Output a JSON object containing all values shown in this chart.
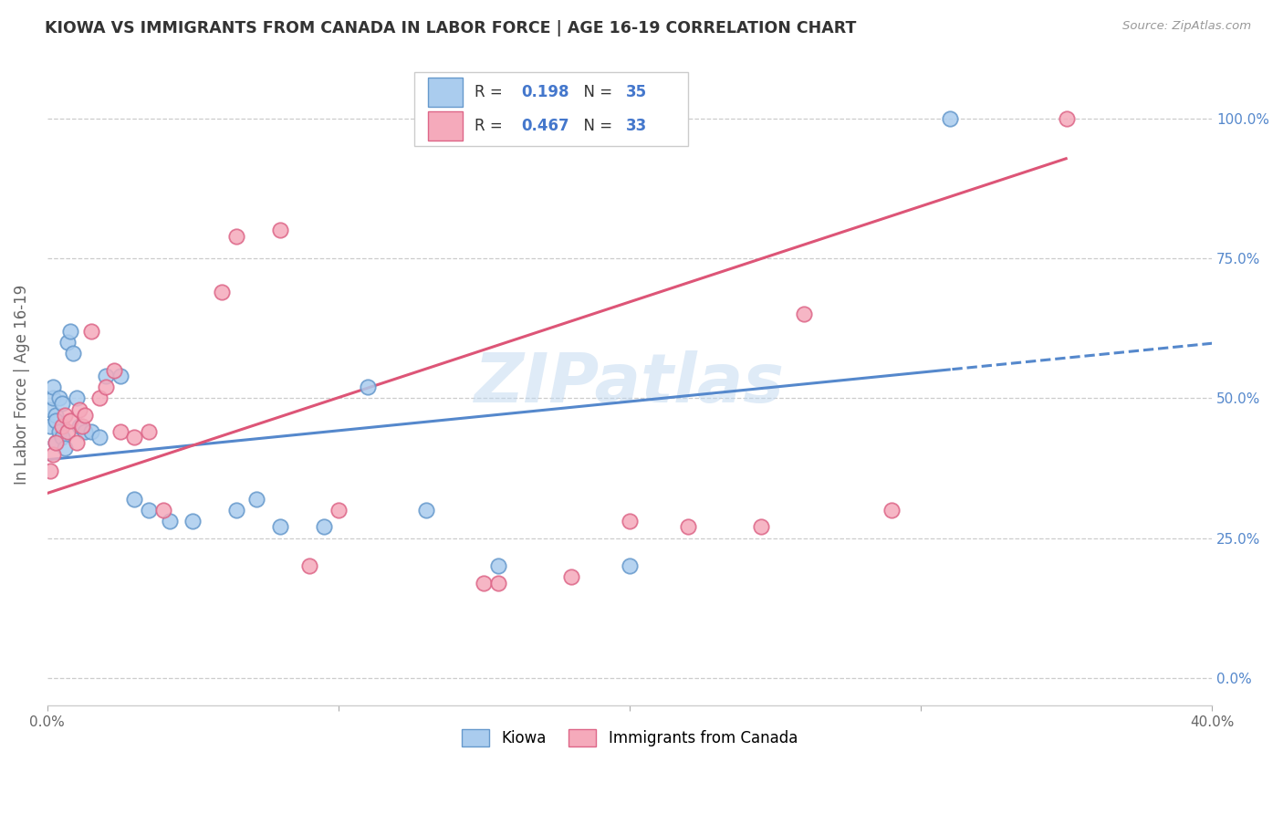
{
  "title": "KIOWA VS IMMIGRANTS FROM CANADA IN LABOR FORCE | AGE 16-19 CORRELATION CHART",
  "source": "Source: ZipAtlas.com",
  "ylabel": "In Labor Force | Age 16-19",
  "xlim": [
    0.0,
    0.4
  ],
  "ylim": [
    -0.05,
    1.1
  ],
  "xtick_values": [
    0.0,
    0.1,
    0.2,
    0.3,
    0.4
  ],
  "xtick_labels_bottom": [
    "0.0%",
    "",
    "",
    "",
    "40.0%"
  ],
  "ytick_values": [
    0.0,
    0.25,
    0.5,
    0.75,
    1.0
  ],
  "ytick_labels_right": [
    "0.0%",
    "25.0%",
    "50.0%",
    "75.0%",
    "100.0%"
  ],
  "r_kiowa": "0.198",
  "n_kiowa": "35",
  "r_canada": "0.467",
  "n_canada": "33",
  "kiowa_fill": "#aaccee",
  "kiowa_edge": "#6699cc",
  "canada_fill": "#f5aabb",
  "canada_edge": "#dd6688",
  "kiowa_line": "#5588cc",
  "canada_line": "#dd5577",
  "bg_color": "#ffffff",
  "grid_color": "#cccccc",
  "watermark": "ZIPatlas",
  "legend1_label": "Kiowa",
  "legend2_label": "Immigrants from Canada",
  "kiowa_x": [
    0.001,
    0.001,
    0.002,
    0.002,
    0.003,
    0.003,
    0.003,
    0.004,
    0.004,
    0.005,
    0.005,
    0.006,
    0.007,
    0.008,
    0.009,
    0.01,
    0.011,
    0.013,
    0.015,
    0.018,
    0.02,
    0.025,
    0.03,
    0.035,
    0.042,
    0.05,
    0.065,
    0.072,
    0.08,
    0.095,
    0.11,
    0.13,
    0.155,
    0.2,
    0.31
  ],
  "kiowa_y": [
    0.45,
    0.48,
    0.5,
    0.52,
    0.47,
    0.42,
    0.46,
    0.5,
    0.44,
    0.49,
    0.43,
    0.41,
    0.6,
    0.62,
    0.58,
    0.5,
    0.45,
    0.44,
    0.44,
    0.43,
    0.54,
    0.54,
    0.32,
    0.3,
    0.28,
    0.28,
    0.3,
    0.32,
    0.27,
    0.27,
    0.52,
    0.3,
    0.2,
    0.2,
    1.0
  ],
  "canada_x": [
    0.001,
    0.002,
    0.003,
    0.005,
    0.006,
    0.007,
    0.008,
    0.01,
    0.011,
    0.012,
    0.013,
    0.015,
    0.018,
    0.02,
    0.023,
    0.025,
    0.03,
    0.035,
    0.04,
    0.06,
    0.065,
    0.08,
    0.09,
    0.1,
    0.15,
    0.155,
    0.18,
    0.2,
    0.22,
    0.245,
    0.26,
    0.29,
    0.35
  ],
  "canada_y": [
    0.37,
    0.4,
    0.42,
    0.45,
    0.47,
    0.44,
    0.46,
    0.42,
    0.48,
    0.45,
    0.47,
    0.62,
    0.5,
    0.52,
    0.55,
    0.44,
    0.43,
    0.44,
    0.3,
    0.69,
    0.79,
    0.8,
    0.2,
    0.3,
    0.17,
    0.17,
    0.18,
    0.28,
    0.27,
    0.27,
    0.65,
    0.3,
    1.0
  ]
}
